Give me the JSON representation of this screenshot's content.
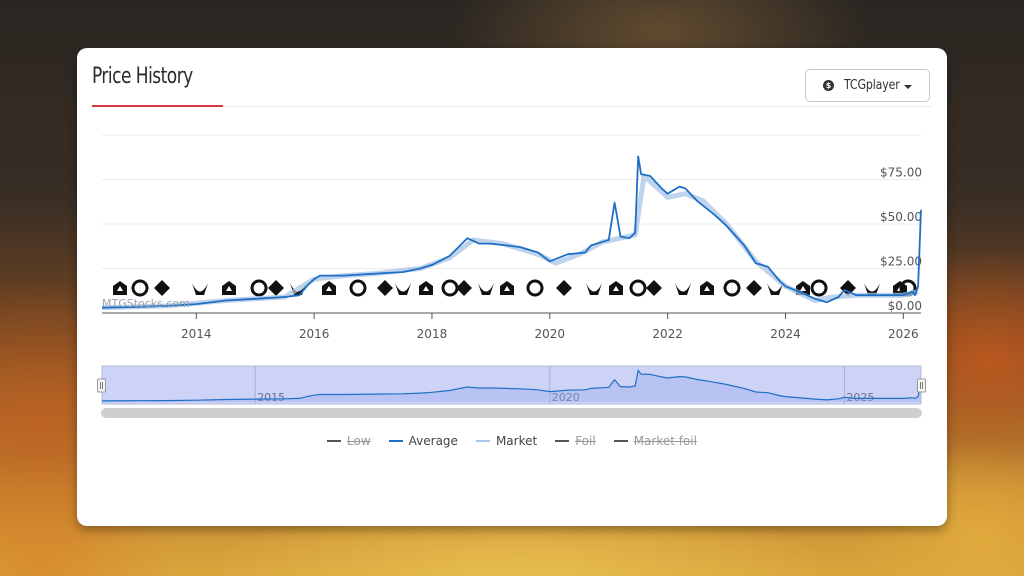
{
  "card": {
    "title": "Price History",
    "source_select": {
      "icon": "$",
      "value": "TCGplayer"
    }
  },
  "colors": {
    "accent_red": "#d9363e",
    "average_line": "#1f6fc5",
    "market_line": "#a8c6e6",
    "hidden_series": "#555555",
    "navigator_fill": "#cdd3f7"
  },
  "watermark": "MTGStocks.com",
  "chart_data": {
    "type": "line",
    "title": "Price History",
    "xlabel": "",
    "ylabel": "",
    "x_ticks": [
      "2014",
      "2016",
      "2018",
      "2020",
      "2022",
      "2024",
      "2026"
    ],
    "y_ticks": [
      "$0.00",
      "$25.00",
      "$50.00",
      "$75.00"
    ],
    "ylim": [
      0,
      100
    ],
    "xlim": [
      2012.4,
      2026.3
    ],
    "grid": true,
    "legend_position": "bottom",
    "legend": [
      {
        "name": "Low",
        "visible": false
      },
      {
        "name": "Average",
        "visible": true
      },
      {
        "name": "Market",
        "visible": true
      },
      {
        "name": "Foil",
        "visible": false
      },
      {
        "name": "Market foil",
        "visible": false
      }
    ],
    "series": [
      {
        "name": "Average",
        "x": [
          2012.4,
          2013.0,
          2013.5,
          2014.0,
          2014.5,
          2015.0,
          2015.5,
          2015.75,
          2015.9,
          2016.0,
          2016.1,
          2016.5,
          2017.0,
          2017.5,
          2017.8,
          2018.0,
          2018.3,
          2018.6,
          2018.8,
          2019.0,
          2019.5,
          2019.8,
          2020.0,
          2020.3,
          2020.6,
          2020.7,
          2020.9,
          2021.0,
          2021.1,
          2021.2,
          2021.35,
          2021.45,
          2021.5,
          2021.55,
          2021.7,
          2021.9,
          2022.0,
          2022.2,
          2022.3,
          2022.5,
          2022.8,
          2023.0,
          2023.3,
          2023.5,
          2023.7,
          2023.9,
          2024.0,
          2024.3,
          2024.5,
          2024.7,
          2024.9,
          2025.0,
          2025.2,
          2025.5,
          2026.0,
          2026.15,
          2026.2,
          2026.25,
          2026.3
        ],
        "values": [
          3,
          3.5,
          4,
          5,
          7,
          8,
          9,
          10,
          16,
          19,
          21,
          21,
          22,
          23,
          25,
          27,
          32,
          42,
          39,
          39,
          37,
          34,
          29,
          33,
          34,
          38,
          40,
          41,
          62,
          43,
          42,
          45,
          88,
          78,
          77,
          70,
          67,
          71,
          70,
          63,
          55,
          49,
          38,
          28,
          26,
          18,
          15,
          11,
          8,
          6,
          9,
          13,
          10,
          10,
          10,
          12,
          10,
          15,
          58
        ]
      },
      {
        "name": "Market",
        "x": [
          2012.4,
          2013.5,
          2014.5,
          2015.5,
          2016.0,
          2016.5,
          2017.0,
          2017.8,
          2018.3,
          2018.7,
          2019.2,
          2019.8,
          2020.1,
          2020.5,
          2020.9,
          2021.2,
          2021.45,
          2021.6,
          2022.0,
          2022.3,
          2022.6,
          2023.0,
          2023.5,
          2024.0,
          2024.5,
          2024.8,
          2025.2,
          2026.0,
          2026.25
        ],
        "values": [
          3,
          4,
          7,
          9,
          19,
          21,
          22,
          25,
          31,
          41,
          39,
          33,
          28,
          33,
          40,
          42,
          44,
          77,
          65,
          67,
          63,
          50,
          29,
          15,
          7,
          9,
          10,
          10,
          12
        ]
      }
    ]
  },
  "navigator": {
    "labels": [
      "2015",
      "2020",
      "2025"
    ]
  }
}
